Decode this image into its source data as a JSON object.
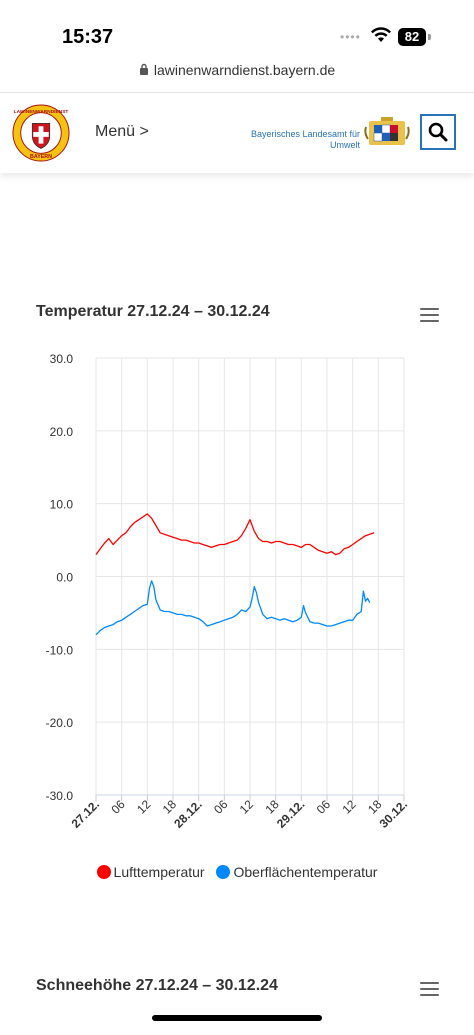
{
  "status_bar": {
    "time": "15:37",
    "battery": "82"
  },
  "browser": {
    "url": "lawinenwarndienst.bayern.de"
  },
  "header": {
    "menu_label": "Menü >",
    "agency_line1": "Bayerisches Landesamt für",
    "agency_line2": "Umwelt",
    "logo_text": "LAWINENWARNDIENST",
    "logo_sub": "BAYERN"
  },
  "charts": [
    {
      "title": "Temperatur 27.12.24 – 30.12.24"
    },
    {
      "title": "Schneehöhe 27.12.24 – 30.12.24"
    }
  ],
  "chart_data": {
    "type": "line",
    "title": "Temperatur 27.12.24 – 30.12.24",
    "ylim": [
      -30,
      30
    ],
    "y_ticks": [
      "30.0",
      "20.0",
      "10.0",
      "0.0",
      "-10.0",
      "-20.0",
      "-30.0"
    ],
    "x_range_hours": [
      0,
      72
    ],
    "x_ticks": [
      {
        "h": 0,
        "label": "27.12.",
        "bold": true
      },
      {
        "h": 6,
        "label": "06",
        "bold": false
      },
      {
        "h": 12,
        "label": "12",
        "bold": false
      },
      {
        "h": 18,
        "label": "18",
        "bold": false
      },
      {
        "h": 24,
        "label": "28.12.",
        "bold": true
      },
      {
        "h": 30,
        "label": "06",
        "bold": false
      },
      {
        "h": 36,
        "label": "12",
        "bold": false
      },
      {
        "h": 42,
        "label": "18",
        "bold": false
      },
      {
        "h": 48,
        "label": "29.12.",
        "bold": true
      },
      {
        "h": 54,
        "label": "06",
        "bold": false
      },
      {
        "h": 60,
        "label": "12",
        "bold": false
      },
      {
        "h": 66,
        "label": "18",
        "bold": false
      },
      {
        "h": 72,
        "label": "30.12.",
        "bold": true
      }
    ],
    "grid": true,
    "legend_position": "bottom",
    "series": [
      {
        "name": "Lufttemperatur",
        "color": "#ff0000",
        "x": [
          0,
          1,
          2,
          3,
          4,
          5,
          6,
          7,
          8,
          9,
          10,
          11,
          12,
          13,
          14,
          15,
          16,
          17,
          18,
          19,
          20,
          21,
          22,
          23,
          24,
          25,
          26,
          27,
          28,
          29,
          30,
          31,
          32,
          33,
          34,
          35,
          36,
          37,
          38,
          39,
          40,
          41,
          42,
          43,
          44,
          45,
          46,
          47,
          48,
          49,
          50,
          51,
          52,
          53,
          54,
          55,
          56,
          57,
          58,
          59,
          60,
          61,
          62,
          63,
          64,
          65
        ],
        "y": [
          3.0,
          3.8,
          4.6,
          5.2,
          4.4,
          5.0,
          5.6,
          6.0,
          6.8,
          7.4,
          7.8,
          8.2,
          8.6,
          8.0,
          7.0,
          6.0,
          5.8,
          5.6,
          5.4,
          5.2,
          5.0,
          5.0,
          4.8,
          4.6,
          4.6,
          4.4,
          4.2,
          4.0,
          4.2,
          4.4,
          4.4,
          4.6,
          4.8,
          5.0,
          5.6,
          6.6,
          7.8,
          6.2,
          5.2,
          4.8,
          4.8,
          4.6,
          4.8,
          4.8,
          4.6,
          4.4,
          4.4,
          4.2,
          4.0,
          4.4,
          4.4,
          4.0,
          3.6,
          3.4,
          3.2,
          3.4,
          3.0,
          3.2,
          3.8,
          4.0,
          4.4,
          4.8,
          5.2,
          5.6,
          5.8,
          6.0
        ]
      },
      {
        "name": "Oberflächentemperatur",
        "color": "#0088ff",
        "x": [
          0,
          1,
          2,
          3,
          4,
          5,
          6,
          7,
          8,
          9,
          10,
          11,
          12,
          12.5,
          13,
          13.5,
          14,
          15,
          16,
          17,
          18,
          19,
          20,
          21,
          22,
          23,
          24,
          25,
          26,
          27,
          28,
          29,
          30,
          31,
          32,
          33,
          34,
          35,
          36,
          36.5,
          37,
          37.5,
          38,
          39,
          40,
          41,
          42,
          43,
          44,
          45,
          46,
          47,
          48,
          48.5,
          49,
          50,
          51,
          52,
          53,
          54,
          55,
          56,
          57,
          58,
          59,
          60,
          61,
          62,
          62.5,
          63,
          63.5,
          64
        ],
        "y": [
          -8.0,
          -7.4,
          -7.0,
          -6.8,
          -6.6,
          -6.2,
          -6.0,
          -5.6,
          -5.2,
          -4.8,
          -4.4,
          -4.0,
          -3.8,
          -1.6,
          -0.6,
          -1.4,
          -3.2,
          -4.6,
          -4.8,
          -4.8,
          -5.0,
          -5.2,
          -5.2,
          -5.4,
          -5.4,
          -5.6,
          -5.8,
          -6.2,
          -6.8,
          -6.6,
          -6.4,
          -6.2,
          -6.0,
          -5.8,
          -5.6,
          -5.2,
          -4.6,
          -4.8,
          -4.2,
          -3.0,
          -1.4,
          -2.2,
          -3.6,
          -5.2,
          -5.8,
          -5.6,
          -5.8,
          -6.0,
          -5.8,
          -6.0,
          -6.2,
          -6.0,
          -5.6,
          -4.0,
          -5.0,
          -6.2,
          -6.4,
          -6.4,
          -6.6,
          -6.8,
          -6.8,
          -6.6,
          -6.4,
          -6.2,
          -6.0,
          -6.0,
          -5.2,
          -4.8,
          -2.0,
          -3.4,
          -3.0,
          -3.6
        ]
      }
    ]
  }
}
